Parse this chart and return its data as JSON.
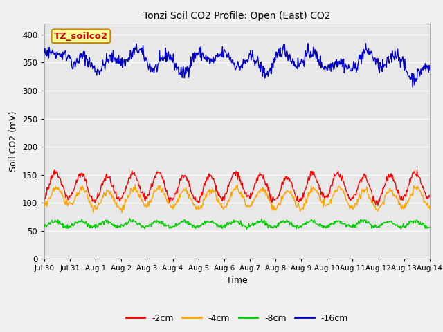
{
  "title": "Tonzi Soil CO2 Profile: Open (East) CO2",
  "ylabel": "Soil CO2 (mV)",
  "xlabel": "Time",
  "ylim": [
    0,
    420
  ],
  "yticks": [
    0,
    50,
    100,
    150,
    200,
    250,
    300,
    350,
    400
  ],
  "fig_bg_color": "#f0f0f0",
  "plot_bg_color": "#e8e8e8",
  "legend_labels": [
    "-2cm",
    "-4cm",
    "-8cm",
    "-16cm"
  ],
  "legend_colors": [
    "#ff0000",
    "#ffa500",
    "#00cc00",
    "#0000cc"
  ],
  "annotation_text": "TZ_soilco2",
  "annotation_bg": "#ffff99",
  "annotation_border": "#cc8800",
  "annotation_text_color": "#cc0000",
  "n_points": 700,
  "x_start_day": 0,
  "x_end_day": 15,
  "xtick_labels": [
    "Jul 30",
    "Jul 31",
    "Aug 1",
    "Aug 2",
    "Aug 3",
    "Aug 4",
    "Aug 5",
    "Aug 6",
    "Aug 7",
    "Aug 8",
    "Aug 9",
    "Aug 10",
    "Aug 11",
    "Aug 12",
    "Aug 13",
    "Aug 14"
  ],
  "xtick_positions": [
    0,
    1,
    2,
    3,
    4,
    5,
    6,
    7,
    8,
    9,
    10,
    11,
    12,
    13,
    14,
    15
  ],
  "line_lw": [
    1.0,
    1.0,
    1.0,
    1.0
  ]
}
